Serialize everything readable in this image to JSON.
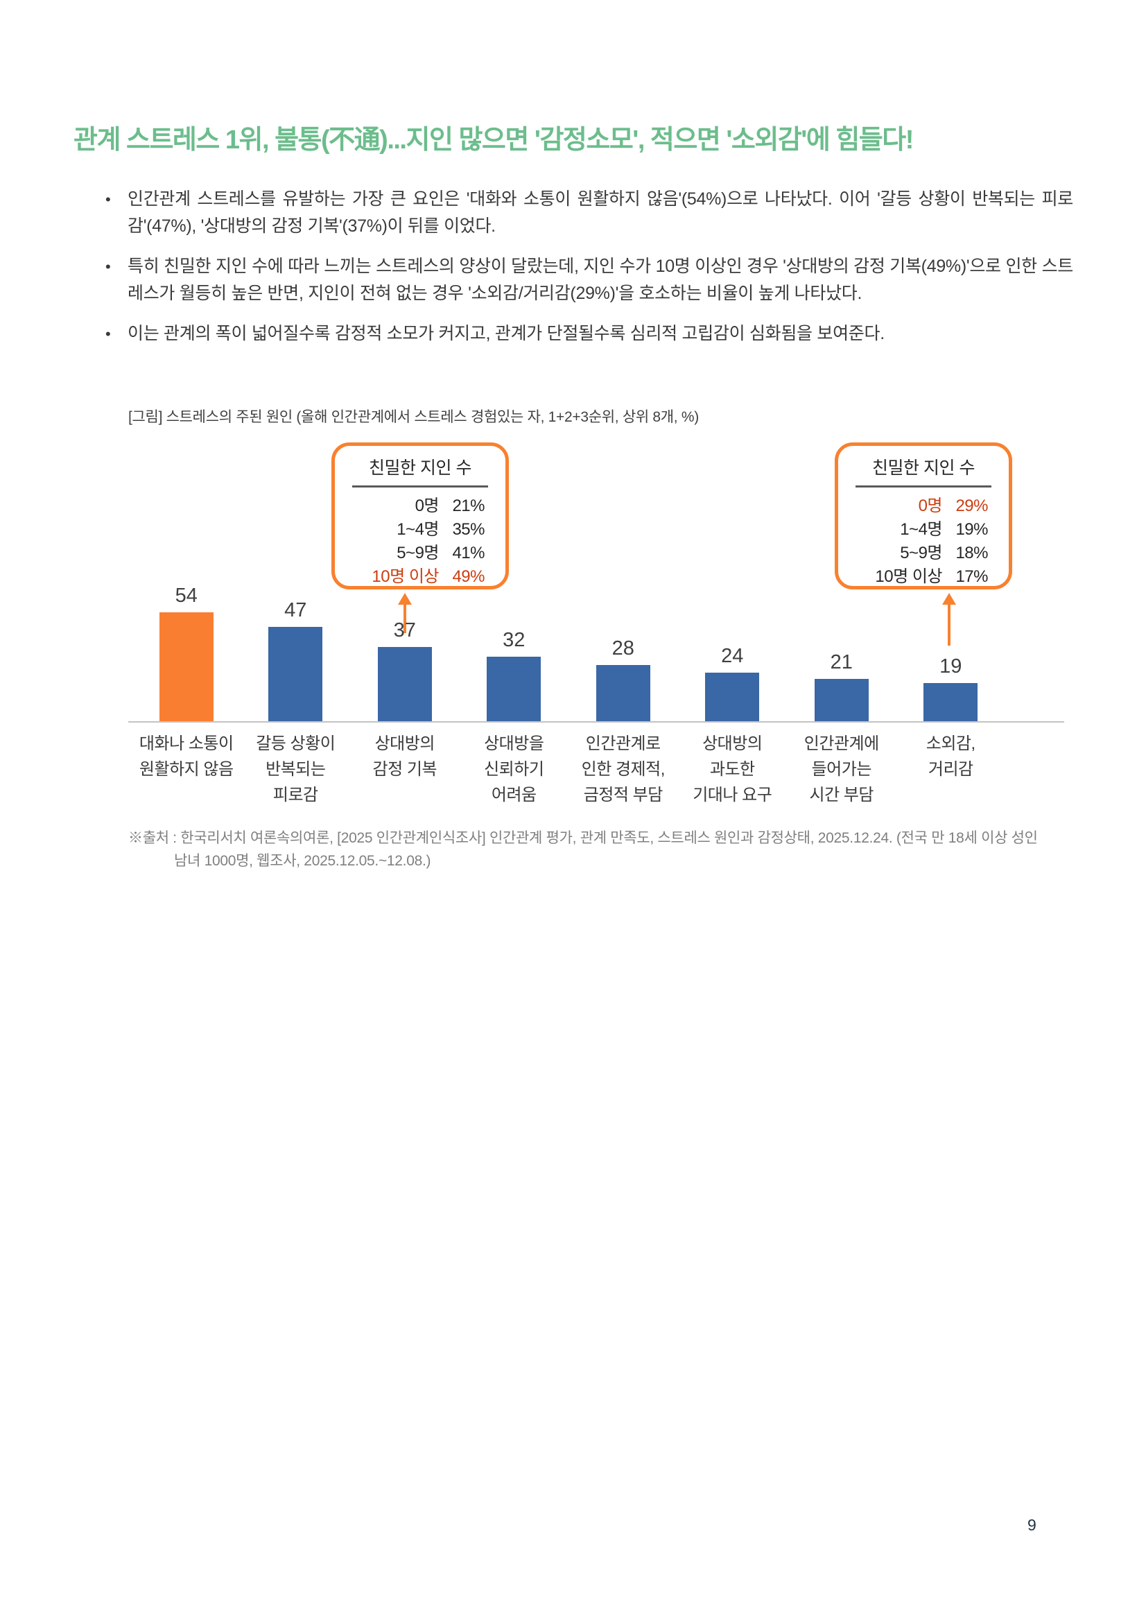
{
  "title": "관계 스트레스 1위, 불통(不通)...지인 많으면 '감정소모', 적으면 '소외감'에 힘들다!",
  "bullets": [
    "인간관계 스트레스를 유발하는 가장 큰 요인은 '대화와 소통이 원활하지 않음'(54%)으로 나타났다. 이어 '갈등 상황이 반복되는 피로감'(47%), '상대방의 감정 기복'(37%)이 뒤를 이었다.",
    "특히 친밀한 지인 수에 따라 느끼는 스트레스의 양상이 달랐는데, 지인 수가 10명 이상인 경우 '상대방의 감정 기복(49%)'으로 인한 스트레스가 월등히 높은 반면, 지인이 전혀 없는 경우 '소외감/거리감(29%)'을 호소하는 비율이 높게 나타났다.",
    "이는 관계의 폭이 넓어질수록 감정적 소모가 커지고, 관계가 단절될수록 심리적 고립감이 심화됨을 보여준다."
  ],
  "figure_caption": "[그림] 스트레스의 주된 원인 (올해 인간관계에서 스트레스 경험있는 자, 1+2+3순위, 상위 8개, %)",
  "chart_data": {
    "type": "bar",
    "title": "스트레스의 주된 원인",
    "unit": "%",
    "categories": [
      "대화나 소통이\n원활하지 않음",
      "갈등 상황이\n반복되는\n피로감",
      "상대방의\n감정 기복",
      "상대방을\n신뢰하기\n어려움",
      "인간관계로\n인한 경제적,\n금정적 부담",
      "상대방의\n과도한\n기대나 요구",
      "인간관계에\n들어가는\n시간 부담",
      "소외감,\n거리감"
    ],
    "values": [
      54,
      47,
      37,
      32,
      28,
      24,
      21,
      19
    ],
    "ylim": [
      0,
      60
    ],
    "grid": false,
    "highlight_index": 0,
    "bar_color": "#3A67A5",
    "highlight_color": "#F97E32",
    "callouts": [
      {
        "title": "친밀한 지인 수",
        "rows": [
          {
            "label": "0명",
            "value": "21%"
          },
          {
            "label": "1~4명",
            "value": "35%"
          },
          {
            "label": "5~9명",
            "value": "41%"
          },
          {
            "label": "10명 이상",
            "value": "49%"
          }
        ],
        "highlight_row": 3,
        "target_category": "상대방의 감정 기복"
      },
      {
        "title": "친밀한 지인 수",
        "rows": [
          {
            "label": "0명",
            "value": "29%"
          },
          {
            "label": "1~4명",
            "value": "19%"
          },
          {
            "label": "5~9명",
            "value": "18%"
          },
          {
            "label": "10명 이상",
            "value": "17%"
          }
        ],
        "highlight_row": 0,
        "target_category": "소외감, 거리감"
      }
    ]
  },
  "source_note": "※출처 : 한국리서치 여론속의여론, [2025 인간관계인식조사] 인간관계 평가, 관계 만족도, 스트레스 원인과 감정상태, 2025.12.24. (전국 만 18세 이상 성인\n남녀 1000명, 웹조사, 2025.12.05.~12.08.)",
  "page_number": "9",
  "colors": {
    "title_green": "#6CBD8C",
    "callout_border": "#F8812F",
    "callout_highlight_text": "#CC3D0F",
    "bar_blue": "#3A67A5",
    "bar_orange": "#F97E32"
  }
}
